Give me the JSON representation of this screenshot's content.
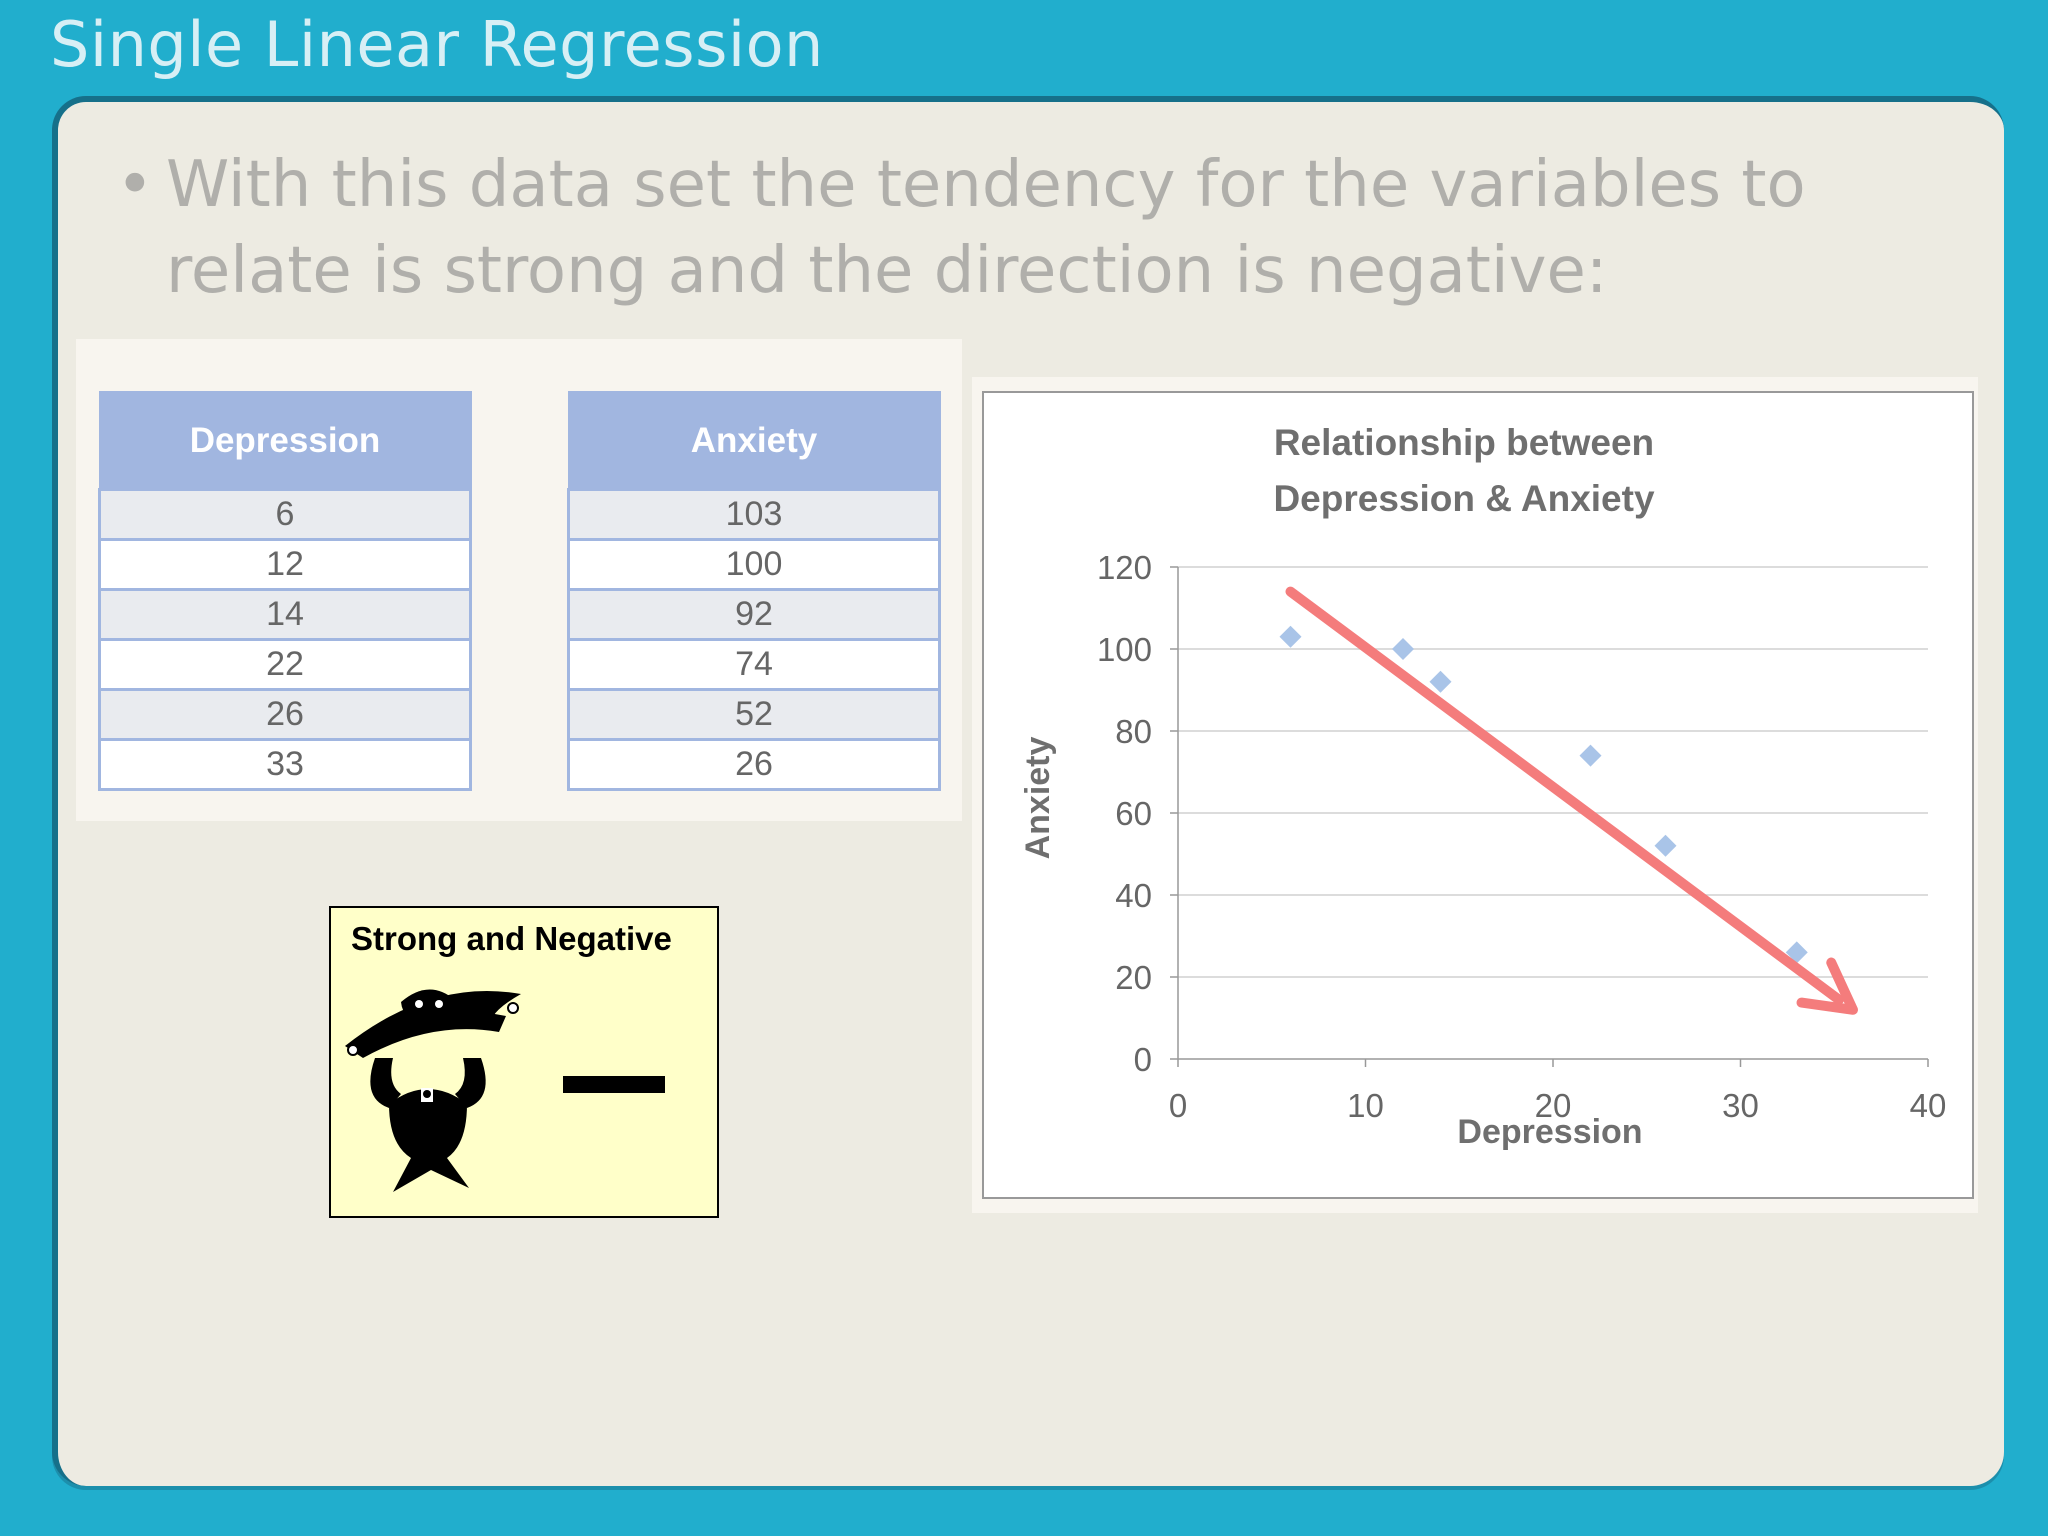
{
  "slide": {
    "title": "Single Linear Regression",
    "bullet_marker": "•",
    "bullet_text": "With this data set the tendency for the variables to relate is strong and the direction is negative:"
  },
  "tables": {
    "depression": {
      "header": "Depression",
      "values": [
        "6",
        "12",
        "14",
        "22",
        "26",
        "33"
      ]
    },
    "anxiety": {
      "header": "Anxiety",
      "values": [
        "103",
        "100",
        "92",
        "74",
        "52",
        "26"
      ]
    }
  },
  "callout": {
    "title": "Strong and Negative",
    "symbol": "minus-sign",
    "icon": "strongman-icon"
  },
  "colors": {
    "background": "#21aecd",
    "panel": "#edebe2",
    "table_header": "#a1b6e0",
    "points": "#a9c4e8",
    "trend_arrow": "#f47c7c",
    "callout_bg": "#ffffc9"
  },
  "chart_data": {
    "type": "scatter",
    "title": "Relationship between Depression & Anxiety",
    "xlabel": "Depression",
    "ylabel": "Anxiety",
    "xlim": [
      0,
      40
    ],
    "ylim": [
      0,
      120
    ],
    "xticks": [
      0,
      10,
      20,
      30,
      40
    ],
    "yticks": [
      0,
      20,
      40,
      60,
      80,
      100,
      120
    ],
    "grid": "horizontal",
    "marker": "diamond",
    "x": [
      6,
      12,
      14,
      22,
      26,
      33
    ],
    "y": [
      103,
      100,
      92,
      74,
      52,
      26
    ],
    "trend_arrow": {
      "from": [
        6,
        114
      ],
      "to": [
        36,
        12
      ]
    }
  }
}
